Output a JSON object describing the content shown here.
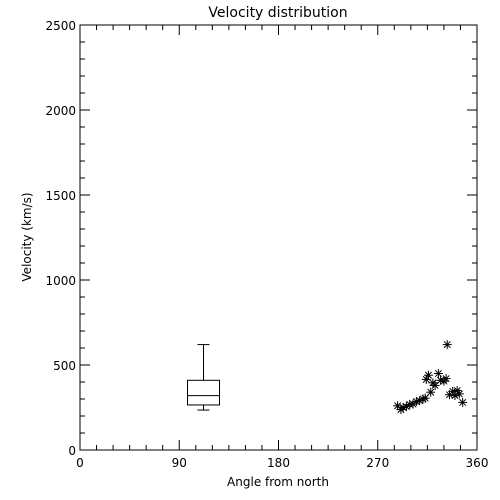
{
  "chart_data": {
    "type": "scatter",
    "title": "Velocity distribution",
    "xlabel": "Angle from north",
    "ylabel": "Velocity (km/s)",
    "xlim": [
      0,
      360
    ],
    "ylim": [
      0,
      2500
    ],
    "xticks": [
      0,
      90,
      180,
      270,
      360
    ],
    "yticks": [
      0,
      500,
      1000,
      1500,
      2000,
      2500
    ],
    "grid": false,
    "marker": "asterisk",
    "color": "#000000",
    "boxplot": {
      "x": 112,
      "min": 235,
      "q1": 265,
      "median": 320,
      "q3": 410,
      "max": 620
    },
    "points": [
      {
        "x": 288,
        "y": 260
      },
      {
        "x": 291,
        "y": 238
      },
      {
        "x": 293,
        "y": 250
      },
      {
        "x": 296,
        "y": 255
      },
      {
        "x": 299,
        "y": 268
      },
      {
        "x": 302,
        "y": 270
      },
      {
        "x": 305,
        "y": 285
      },
      {
        "x": 308,
        "y": 290
      },
      {
        "x": 311,
        "y": 300
      },
      {
        "x": 313,
        "y": 305
      },
      {
        "x": 314,
        "y": 415
      },
      {
        "x": 316,
        "y": 440
      },
      {
        "x": 318,
        "y": 340
      },
      {
        "x": 320,
        "y": 395
      },
      {
        "x": 322,
        "y": 380
      },
      {
        "x": 325,
        "y": 450
      },
      {
        "x": 327,
        "y": 410
      },
      {
        "x": 330,
        "y": 405
      },
      {
        "x": 332,
        "y": 420
      },
      {
        "x": 333,
        "y": 620
      },
      {
        "x": 335,
        "y": 325
      },
      {
        "x": 338,
        "y": 345
      },
      {
        "x": 340,
        "y": 320
      },
      {
        "x": 342,
        "y": 350
      },
      {
        "x": 344,
        "y": 330
      },
      {
        "x": 347,
        "y": 280
      }
    ]
  }
}
